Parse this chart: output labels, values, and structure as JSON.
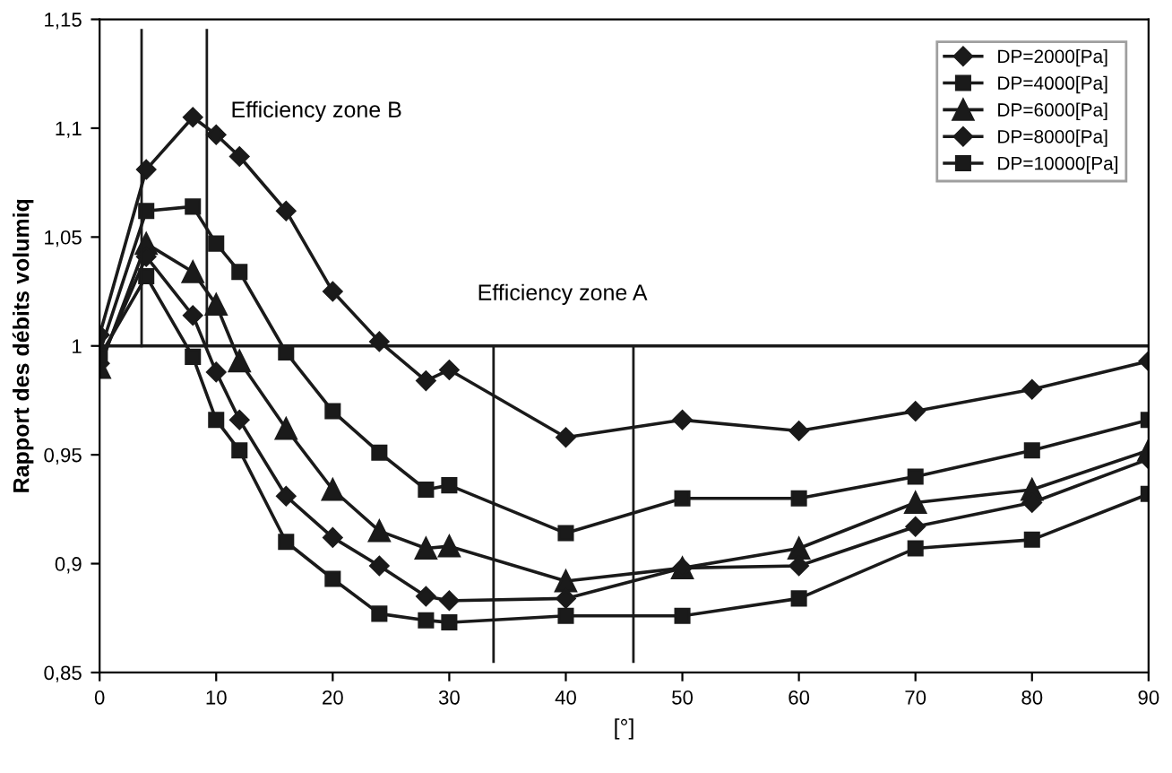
{
  "chart_data": {
    "type": "line",
    "xlabel": "[°]",
    "ylabel": "Rapport des débits volumiq",
    "xlim": [
      0,
      90
    ],
    "ylim": [
      0.85,
      1.15
    ],
    "xticks": [
      0,
      10,
      20,
      30,
      40,
      50,
      60,
      70,
      80,
      90
    ],
    "yticks": [
      {
        "value": 0.85,
        "label": "0,85"
      },
      {
        "value": 0.9,
        "label": "0,9"
      },
      {
        "value": 0.95,
        "label": "0,95"
      },
      {
        "value": 1.0,
        "label": "1"
      },
      {
        "value": 1.05,
        "label": "1,05"
      },
      {
        "value": 1.1,
        "label": "1,1"
      },
      {
        "value": 1.15,
        "label": "1,15"
      }
    ],
    "x": [
      0,
      4,
      8,
      10,
      12,
      16,
      20,
      24,
      28,
      30,
      40,
      50,
      60,
      70,
      80,
      90
    ],
    "grid": false,
    "legend": "top right",
    "line_style": "solid",
    "series": [
      {
        "name": "DP=2000[Pa]",
        "color": "#1a1a1a",
        "marker": "diamond",
        "values": [
          1.005,
          1.081,
          1.105,
          1.097,
          1.087,
          1.062,
          1.025,
          1.002,
          0.984,
          0.989,
          0.958,
          0.966,
          0.961,
          0.97,
          0.98,
          0.993
        ]
      },
      {
        "name": "DP=4000[Pa]",
        "color": "#1a1a1a",
        "marker": "square",
        "values": [
          0.997,
          1.062,
          1.064,
          1.047,
          1.034,
          0.997,
          0.97,
          0.951,
          0.934,
          0.936,
          0.914,
          0.93,
          0.93,
          0.94,
          0.952,
          0.966
        ]
      },
      {
        "name": "DP=6000[Pa]",
        "color": "#1a1a1a",
        "marker": "triangle",
        "values": [
          0.99,
          1.047,
          1.034,
          1.019,
          0.993,
          0.962,
          0.934,
          0.915,
          0.907,
          0.908,
          0.892,
          0.898,
          0.907,
          0.928,
          0.934,
          0.952
        ]
      },
      {
        "name": "DP=8000[Pa]",
        "color": "#1a1a1a",
        "marker": "diamond",
        "values": [
          0.992,
          1.041,
          1.014,
          0.988,
          0.966,
          0.931,
          0.912,
          0.899,
          0.885,
          0.883,
          0.884,
          0.898,
          0.899,
          0.917,
          0.928,
          0.948
        ]
      },
      {
        "name": "DP=10000[Pa]",
        "color": "#1a1a1a",
        "marker": "square",
        "values": [
          0.995,
          1.032,
          0.995,
          0.966,
          0.952,
          0.91,
          0.893,
          0.877,
          0.874,
          0.873,
          0.876,
          0.876,
          0.884,
          0.907,
          0.911,
          0.932
        ]
      },
      {
        "type": "line",
        "color": "#1a1a1a",
        "marker": "none",
        "x": [
          3.6,
          3.6
        ],
        "values": [
          1.145,
          1.0
        ]
      },
      {
        "type": "line",
        "color": "#1a1a1a",
        "marker": "none",
        "x": [
          9.2,
          9.2
        ],
        "values": [
          1.145,
          1.0
        ]
      },
      {
        "type": "line",
        "color": "#1a1a1a",
        "marker": "none",
        "x": [
          33.8,
          33.8
        ],
        "values": [
          1.0,
          0.855
        ]
      },
      {
        "type": "line",
        "color": "#1a1a1a",
        "marker": "none",
        "x": [
          45.8,
          45.8
        ],
        "values": [
          1.0,
          0.855
        ]
      }
    ],
    "ref_lines": [
      {
        "axis": "y",
        "value": 1.0,
        "color": "#1a1a1a",
        "line_style": "solid"
      }
    ],
    "annotations": [
      "Efficiency zone B",
      "Efficiency zone A"
    ]
  }
}
